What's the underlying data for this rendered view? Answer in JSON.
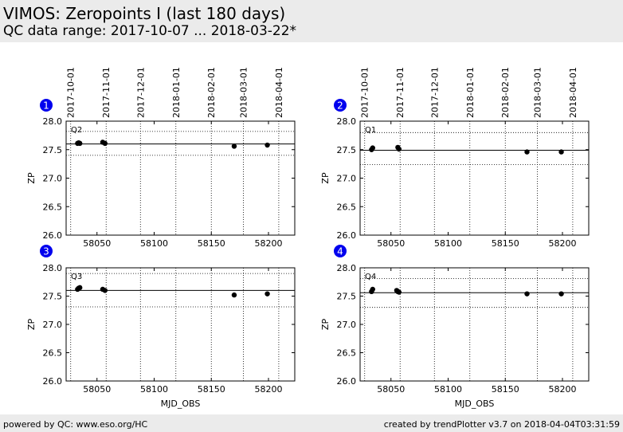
{
  "header": {
    "title": "VIMOS: Zeropoints I (last 180 days)",
    "subtitle": "QC data range: 2017-10-07 ... 2018-03-22*"
  },
  "footer": {
    "left": "powered by QC: www.eso.org/HC",
    "right": "created by trendPlotter v3.7 on 2018-04-04T03:31:59"
  },
  "colors": {
    "header_bg": "#ebebeb",
    "badge": "#0000ee",
    "points": "#000000"
  },
  "chart_data": [
    {
      "type": "scatter",
      "panel_number": "1",
      "label": "Q2",
      "xlabel": "",
      "ylabel": "ZP",
      "xlim": [
        58023,
        58223
      ],
      "ylim": [
        26.0,
        28.0
      ],
      "xticks": [
        58050,
        58100,
        58150,
        58200
      ],
      "xtick_labels": [
        "58050",
        "58100",
        "58150",
        "58200"
      ],
      "yticks": [
        26.0,
        26.5,
        27.0,
        27.5,
        28.0
      ],
      "ytick_labels": [
        "26.0",
        "26.5",
        "27.0",
        "27.5",
        "28.0"
      ],
      "top_date_ticks": [
        58027,
        58058,
        58088,
        58119,
        58150,
        58178,
        58209
      ],
      "top_date_labels": [
        "2017-10-01",
        "2017-11-01",
        "2017-12-01",
        "2018-01-01",
        "2018-02-01",
        "2018-03-01",
        "2018-04-01"
      ],
      "mean": 27.6,
      "limits": [
        27.4,
        27.82
      ],
      "x": [
        58033,
        58034,
        58035,
        58055,
        58057,
        58170,
        58199
      ],
      "y": [
        27.61,
        27.62,
        27.61,
        27.63,
        27.61,
        27.56,
        27.58
      ]
    },
    {
      "type": "scatter",
      "panel_number": "2",
      "label": "Q1",
      "xlabel": "",
      "ylabel": "ZP",
      "xlim": [
        58023,
        58223
      ],
      "ylim": [
        26.0,
        28.0
      ],
      "xticks": [
        58050,
        58100,
        58150,
        58200
      ],
      "xtick_labels": [
        "58050",
        "58100",
        "58150",
        "58200"
      ],
      "yticks": [
        26.0,
        26.5,
        27.0,
        27.5,
        28.0
      ],
      "ytick_labels": [
        "26.0",
        "26.5",
        "27.0",
        "27.5",
        "28.0"
      ],
      "top_date_ticks": [
        58027,
        58058,
        58088,
        58119,
        58150,
        58178,
        58209
      ],
      "top_date_labels": [
        "2017-10-01",
        "2017-11-01",
        "2017-12-01",
        "2018-01-01",
        "2018-02-01",
        "2018-03-01",
        "2018-04-01"
      ],
      "mean": 27.49,
      "limits": [
        27.24,
        27.8
      ],
      "x": [
        58033,
        58034,
        58056,
        58057,
        58169,
        58199
      ],
      "y": [
        27.5,
        27.53,
        27.54,
        27.51,
        27.46,
        27.46
      ]
    },
    {
      "type": "scatter",
      "panel_number": "3",
      "label": "Q3",
      "xlabel": "MJD_OBS",
      "ylabel": "ZP",
      "xlim": [
        58023,
        58223
      ],
      "ylim": [
        26.0,
        28.0
      ],
      "xticks": [
        58050,
        58100,
        58150,
        58200
      ],
      "xtick_labels": [
        "58050",
        "58100",
        "58150",
        "58200"
      ],
      "yticks": [
        26.0,
        26.5,
        27.0,
        27.5,
        28.0
      ],
      "ytick_labels": [
        "26.0",
        "26.5",
        "27.0",
        "27.5",
        "28.0"
      ],
      "top_date_ticks": [
        58027,
        58058,
        58088,
        58119,
        58150,
        58178,
        58209
      ],
      "top_date_labels": [
        "2017-10-01",
        "2017-11-01",
        "2017-12-01",
        "2018-01-01",
        "2018-02-01",
        "2018-03-01",
        "2018-04-01"
      ],
      "mean": 27.6,
      "limits": [
        27.31,
        27.9
      ],
      "x": [
        58033,
        58034,
        58035,
        58055,
        58057,
        58170,
        58199
      ],
      "y": [
        27.62,
        27.64,
        27.65,
        27.62,
        27.6,
        27.52,
        27.54
      ]
    },
    {
      "type": "scatter",
      "panel_number": "4",
      "label": "Q4",
      "xlabel": "MJD_OBS",
      "ylabel": "ZP",
      "xlim": [
        58023,
        58223
      ],
      "ylim": [
        26.0,
        28.0
      ],
      "xticks": [
        58050,
        58100,
        58150,
        58200
      ],
      "xtick_labels": [
        "58050",
        "58100",
        "58150",
        "58200"
      ],
      "yticks": [
        26.0,
        26.5,
        27.0,
        27.5,
        28.0
      ],
      "ytick_labels": [
        "26.0",
        "26.5",
        "27.0",
        "27.5",
        "28.0"
      ],
      "top_date_ticks": [
        58027,
        58058,
        58088,
        58119,
        58150,
        58178,
        58209
      ],
      "top_date_labels": [
        "2017-10-01",
        "2017-11-01",
        "2017-12-01",
        "2018-01-01",
        "2018-02-01",
        "2018-03-01",
        "2018-04-01"
      ],
      "mean": 27.56,
      "limits": [
        27.3,
        27.81
      ],
      "x": [
        58033,
        58034,
        58055,
        58056,
        58057,
        58169,
        58199
      ],
      "y": [
        27.58,
        27.62,
        27.6,
        27.58,
        27.57,
        27.54,
        27.54
      ]
    }
  ]
}
